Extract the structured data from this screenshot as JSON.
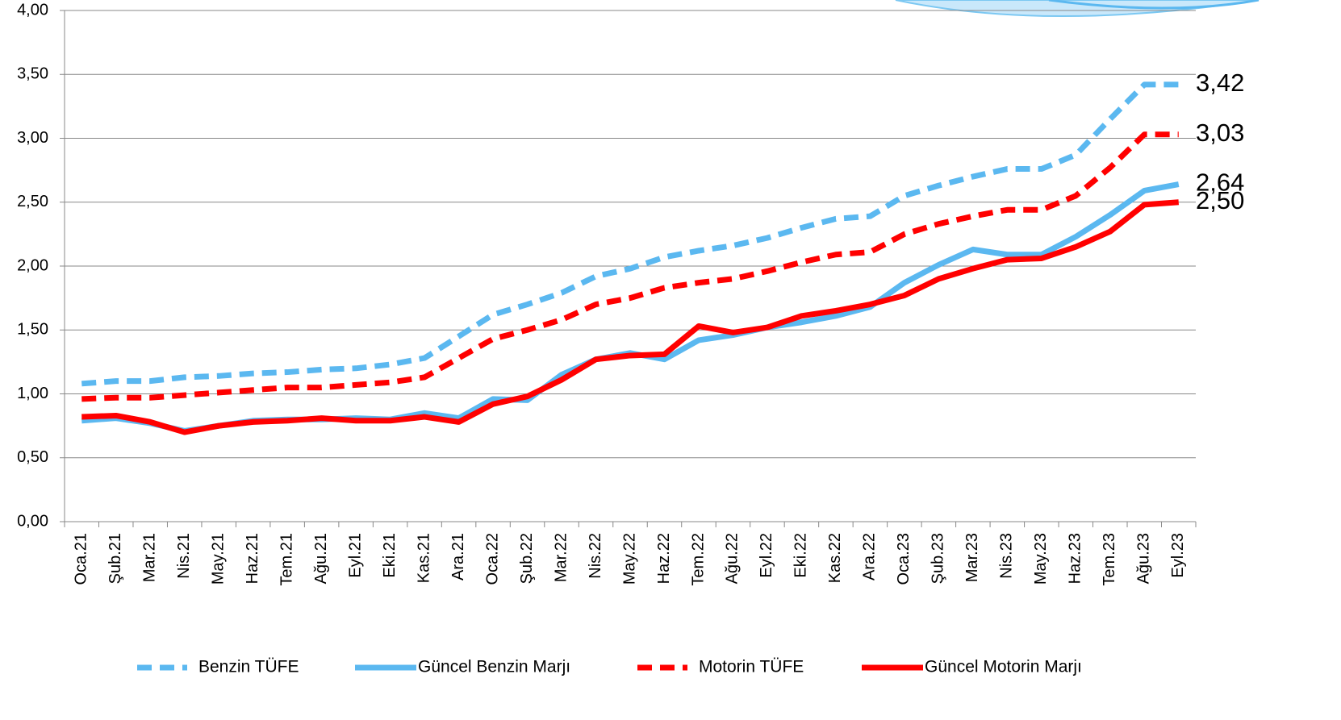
{
  "chart_data": {
    "type": "line",
    "categories": [
      "Oca.21",
      "Şub.21",
      "Mar.21",
      "Nis.21",
      "May.21",
      "Haz.21",
      "Tem.21",
      "Ağu.21",
      "Eyl.21",
      "Eki.21",
      "Kas.21",
      "Ara.21",
      "Oca.22",
      "Şub.22",
      "Mar.22",
      "Nis.22",
      "May.22",
      "Haz.22",
      "Tem.22",
      "Ağu.22",
      "Eyl.22",
      "Eki.22",
      "Kas.22",
      "Ara.22",
      "Oca.23",
      "Şub.23",
      "Mar.23",
      "Nis.23",
      "May.23",
      "Haz.23",
      "Tem.23",
      "Ağu.23",
      "Eyl.23"
    ],
    "series": [
      {
        "name": "Benzin TÜFE",
        "color": "#5bb8f0",
        "dashed": true,
        "values": [
          1.08,
          1.1,
          1.1,
          1.13,
          1.14,
          1.16,
          1.17,
          1.19,
          1.2,
          1.23,
          1.28,
          1.45,
          1.62,
          1.7,
          1.79,
          1.92,
          1.98,
          2.07,
          2.12,
          2.16,
          2.22,
          2.3,
          2.37,
          2.39,
          2.55,
          2.63,
          2.7,
          2.76,
          2.76,
          2.87,
          3.15,
          3.42,
          3.42
        ],
        "value_labels": [
          null,
          null,
          null,
          null,
          null,
          null,
          null,
          null,
          null,
          null,
          null,
          null,
          null,
          null,
          null,
          null,
          null,
          null,
          null,
          null,
          null,
          null,
          null,
          null,
          null,
          null,
          null,
          null,
          null,
          null,
          null,
          null,
          "3,42"
        ]
      },
      {
        "name": "Güncel Benzin Marjı",
        "color": "#5bb8f0",
        "dashed": false,
        "values": [
          0.79,
          0.81,
          0.77,
          0.71,
          0.75,
          0.79,
          0.8,
          0.8,
          0.81,
          0.8,
          0.85,
          0.81,
          0.96,
          0.95,
          1.15,
          1.27,
          1.32,
          1.27,
          1.42,
          1.46,
          1.52,
          1.56,
          1.61,
          1.68,
          1.87,
          2.01,
          2.13,
          2.09,
          2.09,
          2.23,
          2.4,
          2.59,
          2.64
        ],
        "value_labels": [
          null,
          null,
          null,
          null,
          null,
          null,
          null,
          null,
          null,
          null,
          null,
          null,
          null,
          null,
          null,
          null,
          null,
          null,
          null,
          null,
          null,
          null,
          null,
          null,
          null,
          null,
          null,
          null,
          null,
          null,
          null,
          null,
          "2,64"
        ]
      },
      {
        "name": "Motorin TÜFE",
        "color": "#ff0000",
        "dashed": true,
        "values": [
          0.96,
          0.97,
          0.97,
          0.99,
          1.01,
          1.03,
          1.05,
          1.05,
          1.07,
          1.09,
          1.13,
          1.28,
          1.43,
          1.5,
          1.58,
          1.7,
          1.75,
          1.83,
          1.87,
          1.9,
          1.96,
          2.03,
          2.09,
          2.11,
          2.25,
          2.33,
          2.39,
          2.44,
          2.44,
          2.55,
          2.77,
          3.03,
          3.03
        ],
        "value_labels": [
          null,
          null,
          null,
          null,
          null,
          null,
          null,
          null,
          null,
          null,
          null,
          null,
          null,
          null,
          null,
          null,
          null,
          null,
          null,
          null,
          null,
          null,
          null,
          null,
          null,
          null,
          null,
          null,
          null,
          null,
          null,
          null,
          "3,03"
        ]
      },
      {
        "name": "Güncel Motorin Marjı",
        "color": "#ff0000",
        "dashed": false,
        "values": [
          0.82,
          0.83,
          0.78,
          0.7,
          0.75,
          0.78,
          0.79,
          0.81,
          0.79,
          0.79,
          0.82,
          0.78,
          0.92,
          0.98,
          1.11,
          1.27,
          1.3,
          1.31,
          1.53,
          1.48,
          1.52,
          1.61,
          1.65,
          1.7,
          1.77,
          1.9,
          1.98,
          2.05,
          2.06,
          2.15,
          2.27,
          2.48,
          2.5
        ],
        "value_labels": [
          null,
          null,
          null,
          null,
          null,
          null,
          null,
          null,
          null,
          null,
          null,
          null,
          null,
          null,
          null,
          null,
          null,
          null,
          null,
          null,
          null,
          null,
          null,
          null,
          null,
          null,
          null,
          null,
          null,
          null,
          null,
          null,
          "2,50"
        ]
      }
    ],
    "ylim": [
      0,
      4
    ],
    "yticks": [
      {
        "value": 0,
        "label": "0,00"
      },
      {
        "value": 0.5,
        "label": "0,50"
      },
      {
        "value": 1,
        "label": "1,00"
      },
      {
        "value": 1.5,
        "label": "1,50"
      },
      {
        "value": 2,
        "label": "2,00"
      },
      {
        "value": 2.5,
        "label": "2,50"
      },
      {
        "value": 3,
        "label": "3,00"
      },
      {
        "value": 3.5,
        "label": "3,50"
      },
      {
        "value": 4,
        "label": "4,00"
      }
    ],
    "grid": true,
    "legend": "bottom"
  }
}
